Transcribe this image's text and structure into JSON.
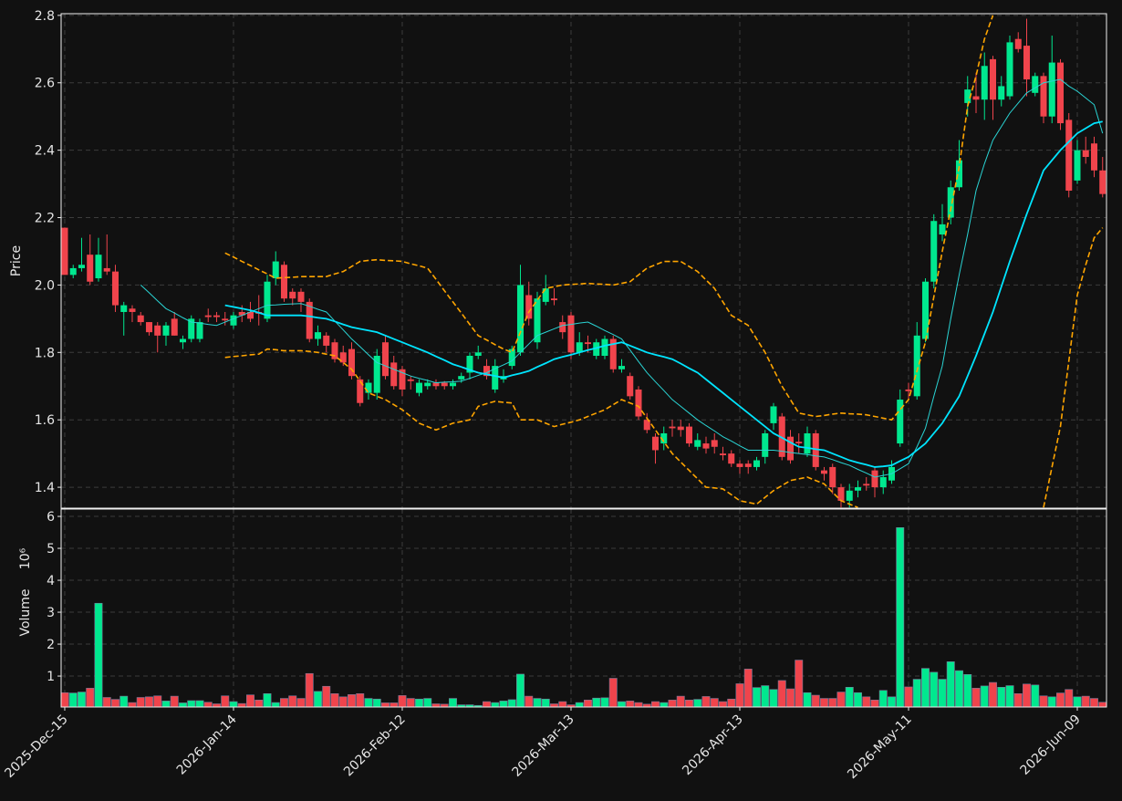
{
  "chart_data": [
    {
      "type": "candlestick",
      "ylabel": "Price",
      "xlim": [
        -0.43,
        123.46
      ],
      "xticks": [
        0,
        20,
        40,
        60,
        80,
        100,
        120
      ],
      "ylim": [
        1.338,
        2.805
      ],
      "yticks": [
        1.4,
        1.6,
        1.8,
        {
          "value": 2,
          "label": "2.0"
        },
        2.2,
        2.4,
        2.6,
        2.8
      ],
      "grid": true,
      "up_color": "#00e88f",
      "down_color": "#f0444c",
      "open": [
        2.17,
        2.03,
        2.05,
        2.09,
        2.02,
        2.05,
        2.04,
        1.92,
        1.93,
        1.91,
        1.89,
        1.88,
        1.85,
        1.9,
        1.83,
        1.84,
        1.84,
        1.91,
        1.91,
        1.9,
        1.88,
        1.92,
        1.92,
        1.92,
        1.9,
        2.02,
        2.06,
        1.98,
        1.98,
        1.95,
        1.84,
        1.85,
        1.83,
        1.8,
        1.81,
        1.72,
        1.68,
        1.68,
        1.83,
        1.77,
        1.75,
        1.72,
        1.68,
        1.7,
        1.71,
        1.71,
        1.7,
        1.72,
        1.74,
        1.79,
        1.76,
        1.69,
        1.72,
        1.76,
        1.8,
        1.97,
        1.83,
        1.95,
        1.96,
        1.89,
        1.91,
        1.8,
        1.83,
        1.79,
        1.79,
        1.84,
        1.75,
        1.73,
        1.69,
        1.6,
        1.55,
        1.53,
        1.58,
        1.58,
        1.58,
        1.52,
        1.53,
        1.54,
        1.5,
        1.5,
        1.47,
        1.47,
        1.46,
        1.49,
        1.59,
        1.61,
        1.55,
        1.535,
        1.5,
        1.56,
        1.45,
        1.46,
        1.4,
        1.36,
        1.39,
        1.41,
        1.45,
        1.4,
        1.42,
        1.53,
        1.69,
        1.67,
        1.84,
        2.01,
        2.15,
        2.2,
        2.29,
        2.54,
        2.56,
        2.55,
        2.67,
        2.55,
        2.56,
        2.73,
        2.71,
        2.57,
        2.62,
        2.5,
        2.66,
        2.49,
        2.31,
        2.4,
        2.42,
        2.34
      ],
      "high": [
        2.17,
        2.06,
        2.14,
        2.15,
        2.14,
        2.15,
        2.06,
        1.95,
        1.94,
        1.92,
        1.89,
        1.89,
        1.89,
        1.92,
        1.85,
        1.91,
        1.9,
        1.93,
        1.92,
        1.92,
        1.92,
        1.94,
        1.95,
        1.97,
        2.03,
        2.1,
        2.07,
        1.99,
        1.99,
        1.96,
        1.88,
        1.86,
        1.84,
        1.82,
        1.83,
        1.73,
        1.72,
        1.81,
        1.85,
        1.79,
        1.76,
        1.73,
        1.72,
        1.72,
        1.72,
        1.715,
        1.72,
        1.74,
        1.8,
        1.82,
        1.78,
        1.78,
        1.75,
        1.82,
        2.06,
        2.01,
        1.98,
        2.03,
        1.99,
        1.91,
        1.92,
        1.86,
        1.85,
        1.84,
        1.85,
        1.85,
        1.78,
        1.74,
        1.7,
        1.62,
        1.56,
        1.58,
        1.6,
        1.6,
        1.59,
        1.56,
        1.55,
        1.56,
        1.52,
        1.51,
        1.48,
        1.48,
        1.49,
        1.57,
        1.65,
        1.62,
        1.57,
        1.56,
        1.58,
        1.57,
        1.46,
        1.47,
        1.41,
        1.41,
        1.42,
        1.43,
        1.46,
        1.45,
        1.48,
        1.69,
        1.71,
        1.89,
        2.02,
        2.21,
        2.24,
        2.31,
        2.43,
        2.62,
        2.63,
        2.69,
        2.68,
        2.62,
        2.74,
        2.75,
        2.79,
        2.63,
        2.63,
        2.74,
        2.67,
        2.51,
        2.43,
        2.44,
        2.44,
        2.38
      ],
      "low": [
        2.03,
        2.02,
        2.04,
        2.0,
        2.01,
        2.03,
        1.92,
        1.85,
        1.89,
        1.88,
        1.85,
        1.8,
        1.82,
        1.85,
        1.81,
        1.83,
        1.83,
        1.89,
        1.89,
        1.88,
        1.87,
        1.89,
        1.89,
        1.88,
        1.89,
        2.0,
        1.95,
        1.94,
        1.92,
        1.83,
        1.82,
        1.8,
        1.77,
        1.76,
        1.72,
        1.64,
        1.66,
        1.66,
        1.72,
        1.69,
        1.67,
        1.69,
        1.67,
        1.69,
        1.69,
        1.69,
        1.69,
        1.71,
        1.72,
        1.78,
        1.72,
        1.68,
        1.71,
        1.75,
        1.79,
        1.88,
        1.81,
        1.94,
        1.94,
        1.84,
        1.78,
        1.79,
        1.8,
        1.78,
        1.78,
        1.74,
        1.74,
        1.66,
        1.6,
        1.56,
        1.47,
        1.51,
        1.55,
        1.55,
        1.52,
        1.51,
        1.5,
        1.5,
        1.48,
        1.46,
        1.44,
        1.44,
        1.45,
        1.47,
        1.57,
        1.48,
        1.47,
        1.5,
        1.49,
        1.45,
        1.42,
        1.38,
        1.34,
        1.34,
        1.37,
        1.39,
        1.37,
        1.38,
        1.41,
        1.52,
        1.66,
        1.66,
        1.83,
        1.99,
        2.13,
        2.18,
        2.28,
        2.5,
        2.51,
        2.49,
        2.49,
        2.53,
        2.55,
        2.69,
        2.56,
        2.56,
        2.48,
        2.48,
        2.46,
        2.26,
        2.3,
        2.36,
        2.32,
        2.26
      ],
      "close": [
        2.03,
        2.05,
        2.06,
        2.01,
        2.09,
        2.04,
        1.94,
        1.94,
        1.92,
        1.89,
        1.86,
        1.85,
        1.88,
        1.85,
        1.84,
        1.9,
        1.89,
        1.905,
        1.905,
        1.895,
        1.91,
        1.91,
        1.9,
        1.915,
        2.01,
        2.07,
        1.96,
        1.96,
        1.95,
        1.84,
        1.86,
        1.82,
        1.78,
        1.77,
        1.73,
        1.65,
        1.71,
        1.79,
        1.73,
        1.7,
        1.69,
        1.715,
        1.71,
        1.71,
        1.7,
        1.7,
        1.71,
        1.73,
        1.79,
        1.8,
        1.73,
        1.76,
        1.73,
        1.81,
        2.0,
        1.9,
        1.96,
        1.99,
        1.955,
        1.86,
        1.8,
        1.83,
        1.825,
        1.83,
        1.84,
        1.75,
        1.76,
        1.67,
        1.61,
        1.57,
        1.51,
        1.56,
        1.575,
        1.57,
        1.53,
        1.54,
        1.515,
        1.52,
        1.495,
        1.47,
        1.46,
        1.46,
        1.48,
        1.56,
        1.64,
        1.49,
        1.48,
        1.53,
        1.56,
        1.46,
        1.44,
        1.4,
        1.36,
        1.39,
        1.4,
        1.405,
        1.4,
        1.43,
        1.46,
        1.66,
        1.685,
        1.85,
        2.01,
        2.19,
        2.18,
        2.29,
        2.37,
        2.58,
        2.55,
        2.65,
        2.55,
        2.59,
        2.72,
        2.7,
        2.61,
        2.62,
        2.5,
        2.66,
        2.48,
        2.28,
        2.4,
        2.38,
        2.34,
        2.27
      ],
      "lines": [
        {
          "color": "#2ad4d4",
          "linewidth": 1,
          "dashed": false,
          "values": [
            null,
            null,
            null,
            null,
            null,
            null,
            null,
            null,
            null,
            2.0,
            1.977,
            1.953,
            1.93,
            1.917,
            1.903,
            1.89,
            1.887,
            1.883,
            1.88,
            1.89,
            1.9,
            1.91,
            1.92,
            1.93,
            1.94,
            1.941,
            1.943,
            1.944,
            1.945,
            1.937,
            1.928,
            1.92,
            1.893,
            1.867,
            1.84,
            1.817,
            1.793,
            1.77,
            1.76,
            1.75,
            1.74,
            1.73,
            1.723,
            1.717,
            1.71,
            1.712,
            1.713,
            1.715,
            1.723,
            1.732,
            1.74,
            1.752,
            1.763,
            1.775,
            1.8,
            1.825,
            1.85,
            1.86,
            1.87,
            1.88,
            1.883,
            1.887,
            1.89,
            1.878,
            1.865,
            1.853,
            1.84,
            1.807,
            1.773,
            1.74,
            1.713,
            1.687,
            1.66,
            1.64,
            1.62,
            1.6,
            1.583,
            1.567,
            1.55,
            1.537,
            1.523,
            1.51,
            1.51,
            1.51,
            1.51,
            1.507,
            1.503,
            1.5,
            1.497,
            1.493,
            1.49,
            1.482,
            1.473,
            1.465,
            1.453,
            1.442,
            1.43,
            1.435,
            1.44,
            1.455,
            1.47,
            1.52,
            1.575,
            1.67,
            1.76,
            1.9,
            2.03,
            2.15,
            2.28,
            2.36,
            2.43,
            2.47,
            2.51,
            2.54,
            2.57,
            2.585,
            2.6,
            2.605,
            2.61,
            2.59,
            2.575,
            2.555,
            2.535,
            2.45
          ]
        },
        {
          "color": "#00e5ff",
          "linewidth": 1.8,
          "dashed": false,
          "values": [
            null,
            null,
            null,
            null,
            null,
            null,
            null,
            null,
            null,
            null,
            null,
            null,
            null,
            null,
            null,
            null,
            null,
            null,
            null,
            1.94,
            1.935,
            1.93,
            1.925,
            1.918,
            1.91,
            1.91,
            1.91,
            1.91,
            1.91,
            1.907,
            1.903,
            1.9,
            1.892,
            1.883,
            1.875,
            1.87,
            1.865,
            1.86,
            1.85,
            1.84,
            1.83,
            1.82,
            1.81,
            1.8,
            1.788,
            1.777,
            1.765,
            1.757,
            1.748,
            1.74,
            1.735,
            1.73,
            1.725,
            1.732,
            1.738,
            1.745,
            1.757,
            1.768,
            1.78,
            1.787,
            1.793,
            1.8,
            1.807,
            1.813,
            1.82,
            1.825,
            1.83,
            1.82,
            1.81,
            1.8,
            1.793,
            1.787,
            1.78,
            1.767,
            1.753,
            1.74,
            1.72,
            1.7,
            1.68,
            1.66,
            1.64,
            1.62,
            1.6,
            1.58,
            1.56,
            1.547,
            1.533,
            1.52,
            1.517,
            1.513,
            1.51,
            1.5,
            1.49,
            1.48,
            1.473,
            1.467,
            1.46,
            1.462,
            1.465,
            1.478,
            1.49,
            1.51,
            1.53,
            1.56,
            1.59,
            1.63,
            1.67,
            1.73,
            1.79,
            1.855,
            1.92,
            1.995,
            2.07,
            2.14,
            2.21,
            2.275,
            2.34,
            2.37,
            2.4,
            2.425,
            2.45,
            2.465,
            2.48,
            2.485
          ]
        },
        {
          "color": "#ffa500",
          "linewidth": 1.6,
          "dashed": true,
          "values": [
            null,
            null,
            null,
            null,
            null,
            null,
            null,
            null,
            null,
            null,
            null,
            null,
            null,
            null,
            null,
            null,
            null,
            null,
            null,
            2.095,
            2.083,
            2.07,
            2.058,
            2.045,
            2.033,
            2.02,
            2.022,
            2.023,
            2.025,
            2.025,
            2.025,
            2.025,
            2.033,
            2.04,
            2.055,
            2.07,
            2.073,
            2.075,
            2.073,
            2.072,
            2.07,
            2.063,
            2.057,
            2.05,
            2.017,
            1.983,
            1.95,
            1.917,
            1.883,
            1.85,
            1.837,
            1.823,
            1.81,
            1.8,
            1.86,
            1.92,
            1.955,
            1.99,
            1.995,
            2.0,
            2.002,
            2.003,
            2.005,
            2.003,
            2.002,
            2.0,
            2.005,
            2.01,
            2.03,
            2.05,
            2.06,
            2.07,
            2.07,
            2.07,
            2.055,
            2.04,
            2.015,
            1.99,
            1.95,
            1.91,
            1.895,
            1.88,
            1.84,
            1.8,
            1.75,
            1.7,
            1.66,
            1.62,
            1.615,
            1.61,
            1.613,
            1.617,
            1.62,
            1.618,
            1.617,
            1.615,
            1.61,
            1.605,
            1.6,
            1.63,
            1.66,
            1.745,
            1.83,
            1.965,
            2.1,
            2.225,
            2.35,
            2.53,
            2.62,
            2.73,
            2.8,
            null,
            null,
            null,
            null,
            null,
            null,
            null,
            null,
            null,
            null,
            null,
            null,
            null
          ]
        },
        {
          "color": "#ffa500",
          "linewidth": 1.6,
          "dashed": true,
          "values": [
            null,
            null,
            null,
            null,
            null,
            null,
            null,
            null,
            null,
            null,
            null,
            null,
            null,
            null,
            null,
            null,
            null,
            null,
            null,
            1.785,
            1.788,
            1.79,
            1.793,
            1.795,
            1.81,
            1.808,
            1.805,
            1.805,
            1.805,
            1.803,
            1.8,
            1.795,
            1.79,
            1.77,
            1.75,
            1.715,
            1.68,
            1.67,
            1.66,
            1.645,
            1.63,
            1.61,
            1.59,
            1.58,
            1.57,
            1.58,
            1.59,
            1.595,
            1.6,
            1.64,
            1.648,
            1.655,
            1.652,
            1.65,
            1.6,
            1.6,
            1.6,
            1.59,
            1.58,
            1.587,
            1.593,
            1.6,
            1.61,
            1.62,
            1.63,
            1.645,
            1.66,
            1.65,
            1.64,
            1.605,
            1.57,
            1.535,
            1.5,
            1.475,
            1.45,
            1.425,
            1.4,
            1.398,
            1.395,
            1.378,
            1.36,
            1.355,
            1.35,
            1.37,
            1.39,
            1.405,
            1.42,
            1.425,
            1.43,
            1.42,
            1.41,
            1.385,
            1.36,
            1.35,
            1.34,
            null,
            null,
            null,
            null,
            null,
            null,
            null,
            null,
            null,
            null,
            null,
            null,
            null,
            null,
            null,
            null,
            null,
            null,
            null,
            null,
            null,
            1.34,
            1.46,
            1.58,
            1.775,
            1.97,
            2.06,
            2.14,
            2.17
          ]
        }
      ]
    },
    {
      "type": "bar",
      "ylabel": "Volume",
      "ylabel_scale": "10⁶",
      "xlim": [
        -0.43,
        123.46
      ],
      "xticks": [
        {
          "value": 0,
          "label": "2025-Dec-15"
        },
        {
          "value": 20,
          "label": "2026-Jan-14"
        },
        {
          "value": 40,
          "label": "2026-Feb-12"
        },
        {
          "value": 60,
          "label": "2026-Mar-13"
        },
        {
          "value": 80,
          "label": "2026-Apr-13"
        },
        {
          "value": 100,
          "label": "2026-May-11"
        },
        {
          "value": 120,
          "label": "2026-Jun-09"
        }
      ],
      "ylim": [
        0.03,
        6.23
      ],
      "yticks": [
        1,
        2,
        3,
        4,
        5,
        6
      ],
      "grid": true,
      "values": [
        0.48,
        0.47,
        0.5,
        0.62,
        3.28,
        0.33,
        0.27,
        0.37,
        0.17,
        0.33,
        0.35,
        0.38,
        0.22,
        0.37,
        0.16,
        0.23,
        0.23,
        0.18,
        0.13,
        0.38,
        0.2,
        0.14,
        0.41,
        0.25,
        0.45,
        0.17,
        0.3,
        0.38,
        0.3,
        1.08,
        0.52,
        0.68,
        0.45,
        0.35,
        0.42,
        0.45,
        0.3,
        0.28,
        0.16,
        0.16,
        0.39,
        0.3,
        0.28,
        0.3,
        0.13,
        0.12,
        0.3,
        0.1,
        0.1,
        0.08,
        0.2,
        0.17,
        0.22,
        0.26,
        1.06,
        0.37,
        0.3,
        0.28,
        0.13,
        0.2,
        0.1,
        0.17,
        0.25,
        0.31,
        0.32,
        0.93,
        0.2,
        0.22,
        0.17,
        0.12,
        0.2,
        0.17,
        0.25,
        0.37,
        0.25,
        0.27,
        0.36,
        0.3,
        0.2,
        0.28,
        0.76,
        1.22,
        0.64,
        0.7,
        0.58,
        0.86,
        0.6,
        1.5,
        0.48,
        0.4,
        0.3,
        0.3,
        0.5,
        0.65,
        0.48,
        0.35,
        0.25,
        0.55,
        0.35,
        5.65,
        0.66,
        0.9,
        1.24,
        1.12,
        0.9,
        1.45,
        1.17,
        1.05,
        0.62,
        0.69,
        0.8,
        0.65,
        0.7,
        0.45,
        0.75,
        0.72,
        0.38,
        0.35,
        0.47,
        0.58,
        0.35,
        0.37,
        0.3,
        0.18
      ]
    }
  ]
}
